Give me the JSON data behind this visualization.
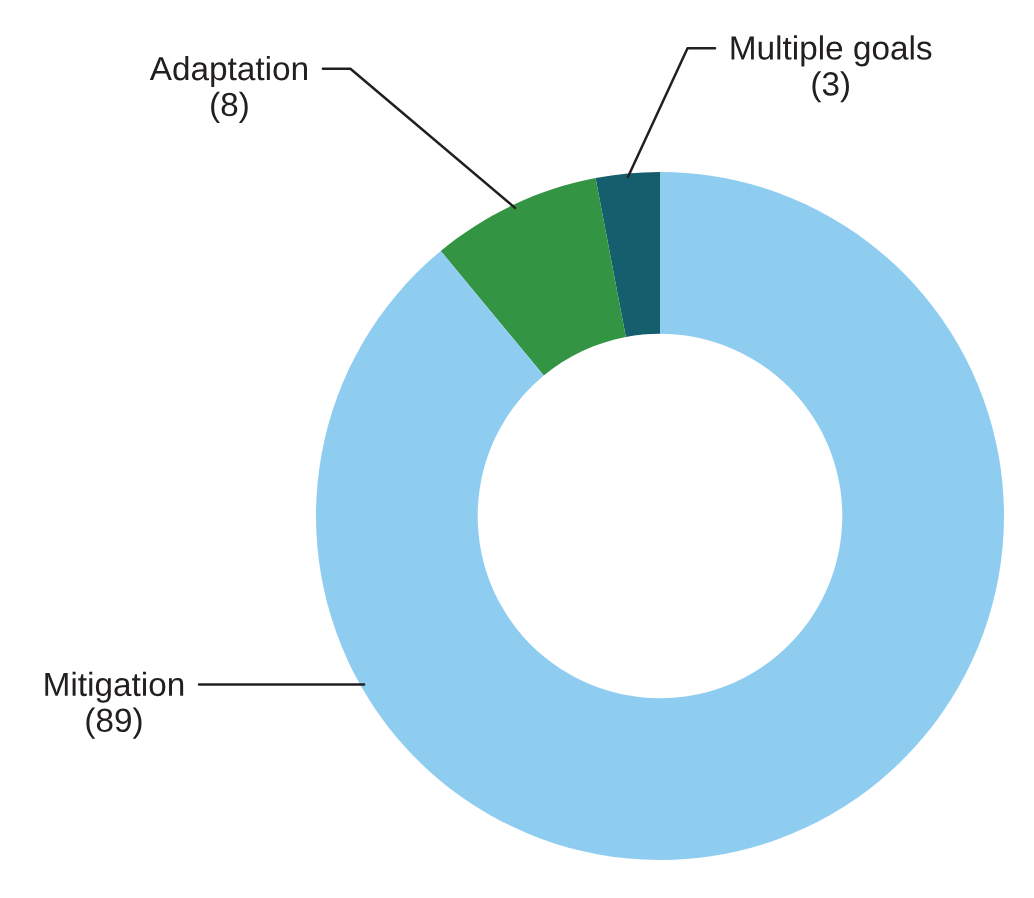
{
  "chart_data": {
    "type": "donut",
    "categories": [
      "Multiple goals",
      "Adaptation",
      "Mitigation"
    ],
    "values": [
      3,
      8,
      89
    ],
    "value_labels": [
      "(3)",
      "(8)",
      "(89)"
    ],
    "colors": [
      "#155e6e",
      "#339443",
      "#8fcdf0"
    ],
    "legend": false
  }
}
